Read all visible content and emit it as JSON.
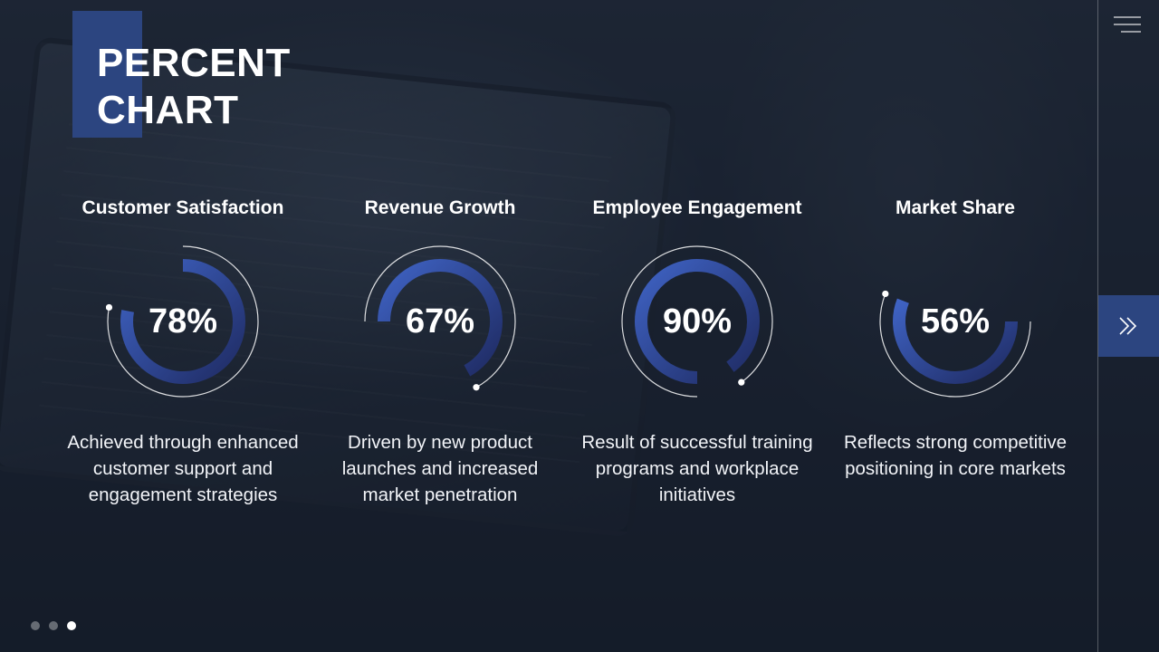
{
  "slide": {
    "title": "PERCENT CHART"
  },
  "colors": {
    "accent": "#2c4580",
    "ring_gradient_start": "#3f63c4",
    "ring_gradient_end": "#1f2b63",
    "outline": "#ffffff"
  },
  "icons": {
    "menu": "hamburger-menu-icon",
    "next": "double-chevron-right-icon"
  },
  "pagination": {
    "count": 3,
    "active_index": 2
  },
  "chart_data": {
    "type": "pie",
    "items": [
      {
        "title": "Customer Satisfaction",
        "value": 78,
        "label": "78%",
        "description": "Achieved through enhanced customer support and engagement strategies"
      },
      {
        "title": "Revenue Growth",
        "value": 67,
        "label": "67%",
        "description": "Driven by new product launches and increased market penetration"
      },
      {
        "title": "Employee Engagement",
        "value": 90,
        "label": "90%",
        "description": "Result of successful training programs and workplace initiatives"
      },
      {
        "title": "Market Share",
        "value": 56,
        "label": "56%",
        "description": "Reflects strong competitive positioning in core markets"
      }
    ]
  }
}
